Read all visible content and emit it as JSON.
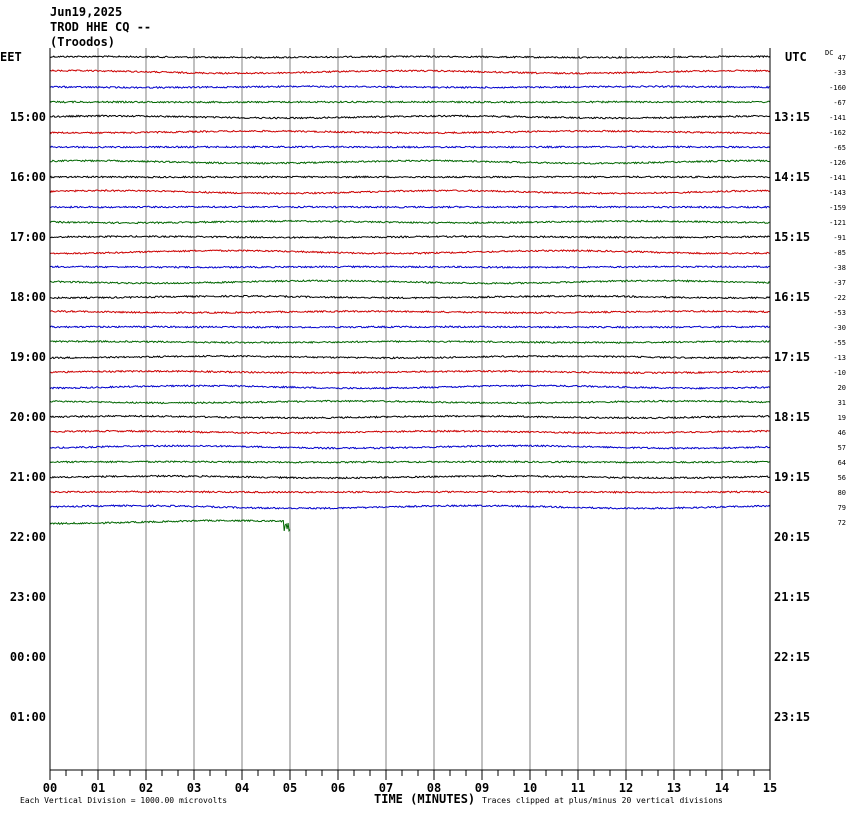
{
  "header": {
    "date": "Jun19,2025",
    "station": "TROD HHE CQ --",
    "location": "(Troodos)"
  },
  "axis_labels": {
    "left_tz": "EET",
    "right_tz": "UTC",
    "dc_label": "DC",
    "x_title": "TIME (MINUTES)"
  },
  "footer": {
    "scale_note": "Each Vertical Division = 1000.00 microvolts",
    "clip_note": "Traces clipped at plus/minus 20 vertical divisions"
  },
  "colors": {
    "trace_cycle": [
      "#000000",
      "#cc0000",
      "#0000cc",
      "#006600"
    ],
    "grid": "#808080"
  },
  "chart_data": {
    "type": "line",
    "xlabel": "TIME (MINUTES)",
    "xlim": [
      0,
      15
    ],
    "x_ticks": [
      "00",
      "01",
      "02",
      "03",
      "04",
      "05",
      "06",
      "07",
      "08",
      "09",
      "10",
      "11",
      "12",
      "13",
      "14",
      "15"
    ],
    "left_time_labels": [
      "15:00",
      "16:00",
      "17:00",
      "18:00",
      "19:00",
      "20:00",
      "21:00",
      "22:00",
      "23:00",
      "00:00",
      "01:00"
    ],
    "right_time_labels": [
      "13:15",
      "14:15",
      "15:15",
      "16:15",
      "17:15",
      "18:15",
      "19:15",
      "20:15",
      "21:15",
      "22:15",
      "23:15"
    ],
    "dc_offsets": [
      47,
      -33,
      -160,
      -67,
      -141,
      -162,
      -65,
      -126,
      -141,
      -143,
      -159,
      -121,
      -91,
      -85,
      -38,
      -37,
      -22,
      -53,
      -30,
      -55,
      -13,
      -10,
      20,
      31,
      19,
      46,
      57,
      64,
      56,
      80,
      79,
      72
    ],
    "trace_count": 32,
    "last_trace_end_minute": 5.0,
    "event": {
      "trace_index": 31,
      "minute": 4.95
    }
  }
}
